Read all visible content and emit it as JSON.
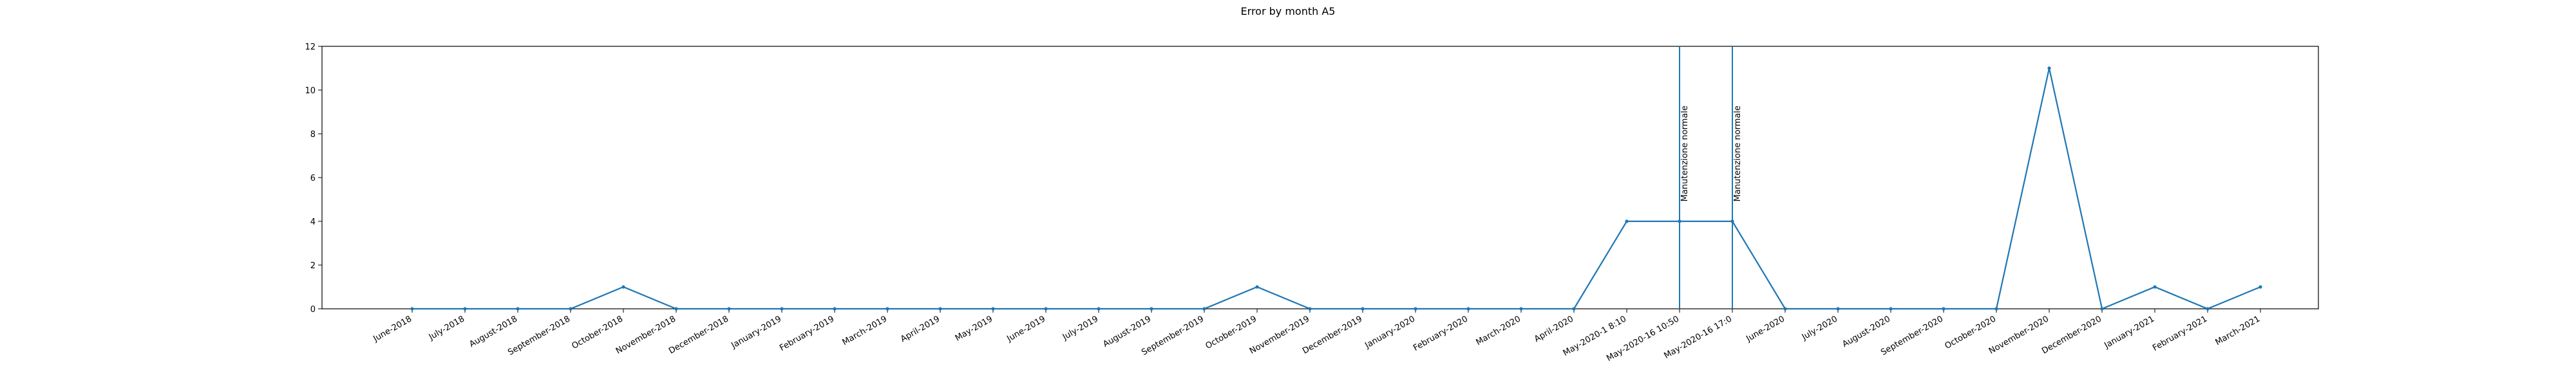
{
  "chart_data": {
    "type": "line",
    "title": "Error by month A5",
    "xlabel": "",
    "ylabel": "",
    "ylim": [
      0,
      12
    ],
    "yticks": [
      0,
      2,
      4,
      6,
      8,
      10,
      12
    ],
    "grid": false,
    "line_color": "#1f77b4",
    "categories": [
      "June-2018",
      "July-2018",
      "August-2018",
      "September-2018",
      "October-2018",
      "November-2018",
      "December-2018",
      "January-2019",
      "February-2019",
      "March-2019",
      "April-2019",
      "May-2019",
      "June-2019",
      "July-2019",
      "August-2019",
      "September-2019",
      "October-2019",
      "November-2019",
      "December-2019",
      "January-2020",
      "February-2020",
      "March-2020",
      "April-2020",
      "May-2020-1 8:10",
      "May-2020-16 10:50",
      "May-2020-16 17:0",
      "June-2020",
      "July-2020",
      "August-2020",
      "September-2020",
      "October-2020",
      "November-2020",
      "December-2020",
      "January-2021",
      "February-2021",
      "March-2021"
    ],
    "series": [
      {
        "values": [
          0,
          0,
          0,
          0,
          1,
          0,
          0,
          0,
          0,
          0,
          0,
          0,
          0,
          0,
          0,
          0,
          1,
          0,
          0,
          0,
          0,
          0,
          0,
          4,
          4,
          4,
          0,
          0,
          0,
          0,
          0,
          11,
          0,
          1,
          0,
          1
        ]
      }
    ],
    "annotations": [
      {
        "x": "May-2020-16 10:50",
        "text": "Manutenzione normale"
      },
      {
        "x": "May-2020-16 17:0",
        "text": "Manutenzione normale"
      }
    ]
  }
}
